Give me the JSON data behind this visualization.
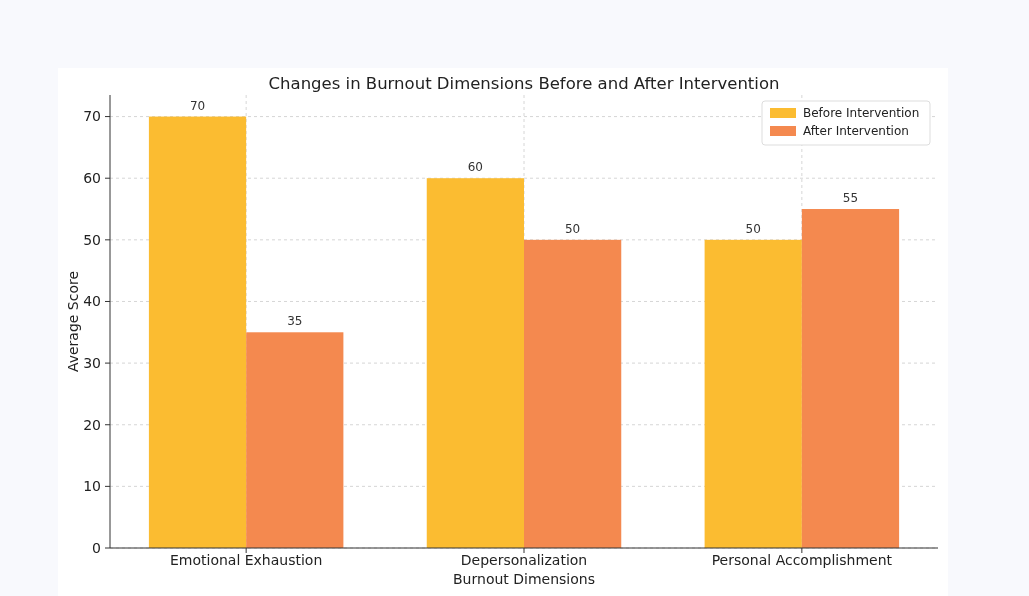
{
  "chart_data": {
    "type": "bar",
    "title": "Changes in Burnout Dimensions Before and After Intervention",
    "xlabel": "Burnout Dimensions",
    "ylabel": "Average Score",
    "categories": [
      "Emotional Exhaustion",
      "Depersonalization",
      "Personal Accomplishment"
    ],
    "series": [
      {
        "name": "Before Intervention",
        "color": "#fbbc31",
        "values": [
          70,
          60,
          50
        ]
      },
      {
        "name": "After Intervention",
        "color": "#f4894f",
        "values": [
          35,
          50,
          55
        ]
      }
    ],
    "ylim": [
      0,
      73.5
    ],
    "yticks": [
      0,
      10,
      20,
      30,
      40,
      50,
      60,
      70
    ],
    "grid": true,
    "legend": "top right",
    "data_labels": true
  }
}
